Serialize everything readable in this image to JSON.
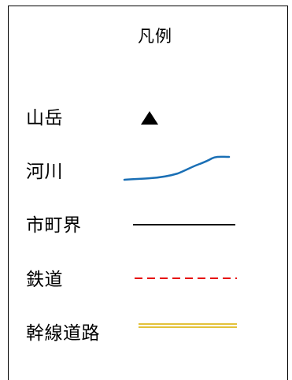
{
  "legend": {
    "title": "凡例",
    "items": [
      {
        "label": "山岳",
        "symbol": "triangle-icon",
        "color": "#000000"
      },
      {
        "label": "河川",
        "symbol": "river-line",
        "color": "#1a6fb5"
      },
      {
        "label": "市町界",
        "symbol": "solid-line",
        "color": "#000000"
      },
      {
        "label": "鉄道",
        "symbol": "dashed-line",
        "color": "#e60000"
      },
      {
        "label": "幹線道路",
        "symbol": "double-line",
        "color": "#e3c23a"
      }
    ]
  }
}
